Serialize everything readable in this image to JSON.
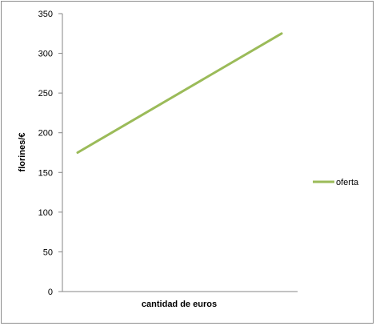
{
  "chart_data": {
    "type": "line",
    "title": "",
    "xlabel": "cantidad de euros",
    "ylabel": "florines/€",
    "ylim": [
      0,
      350
    ],
    "yticks": [
      0,
      50,
      100,
      150,
      200,
      250,
      300,
      350
    ],
    "x": [
      0,
      1
    ],
    "grid": false,
    "legend_position": "right",
    "series": [
      {
        "name": "oferta",
        "color": "#9bbb59",
        "values": [
          175,
          325
        ]
      }
    ]
  }
}
